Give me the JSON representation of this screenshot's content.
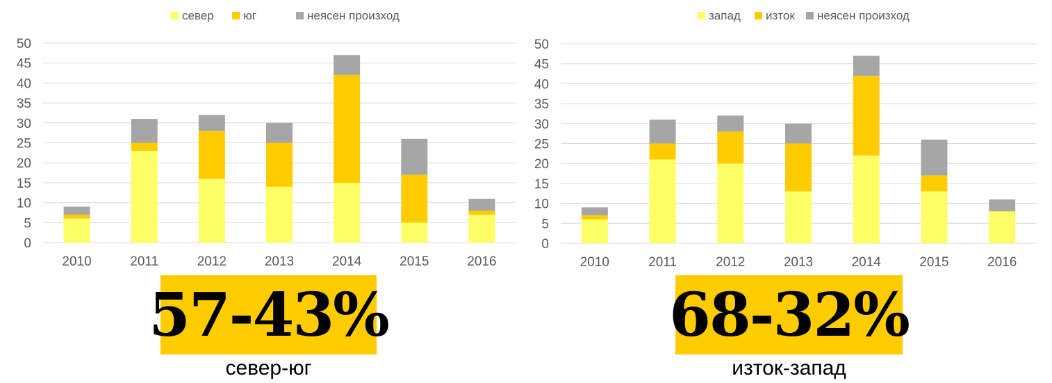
{
  "colors": {
    "grid": "#d9d9d9",
    "tick": "#595959",
    "highlight": "#ffcc00"
  },
  "chart_data": [
    {
      "type": "bar",
      "stacked": true,
      "categories": [
        "2010",
        "2011",
        "2012",
        "2013",
        "2014",
        "2015",
        "2016"
      ],
      "ylim": [
        0,
        50
      ],
      "yticks": [
        0,
        5,
        10,
        15,
        20,
        25,
        30,
        35,
        40,
        45,
        50
      ],
      "grid": true,
      "legend_position": "top",
      "series": [
        {
          "name": "север",
          "color": "#ffff66",
          "values": [
            6,
            23,
            16,
            14,
            15,
            5,
            7
          ]
        },
        {
          "name": "юг",
          "color": "#ffcc00",
          "values": [
            1,
            2,
            12,
            11,
            27,
            12,
            1
          ]
        },
        {
          "name": "неясен произход",
          "color": "#a6a6a6",
          "values": [
            2,
            6,
            4,
            5,
            5,
            9,
            3
          ]
        }
      ],
      "headline": "57-43%",
      "caption": "север-юг"
    },
    {
      "type": "bar",
      "stacked": true,
      "categories": [
        "2010",
        "2011",
        "2012",
        "2013",
        "2014",
        "2015",
        "2016"
      ],
      "ylim": [
        0,
        50
      ],
      "yticks": [
        0,
        5,
        10,
        15,
        20,
        25,
        30,
        35,
        40,
        45,
        50
      ],
      "grid": true,
      "legend_position": "top",
      "series": [
        {
          "name": "запад",
          "color": "#ffff66",
          "values": [
            6,
            21,
            20,
            13,
            22,
            13,
            8
          ]
        },
        {
          "name": "изток",
          "color": "#ffcc00",
          "values": [
            1,
            4,
            8,
            12,
            20,
            4,
            0
          ]
        },
        {
          "name": "неясен произход",
          "color": "#a6a6a6",
          "values": [
            2,
            6,
            4,
            5,
            5,
            9,
            3
          ]
        }
      ],
      "headline": "68-32%",
      "caption": "изток-запад"
    }
  ]
}
